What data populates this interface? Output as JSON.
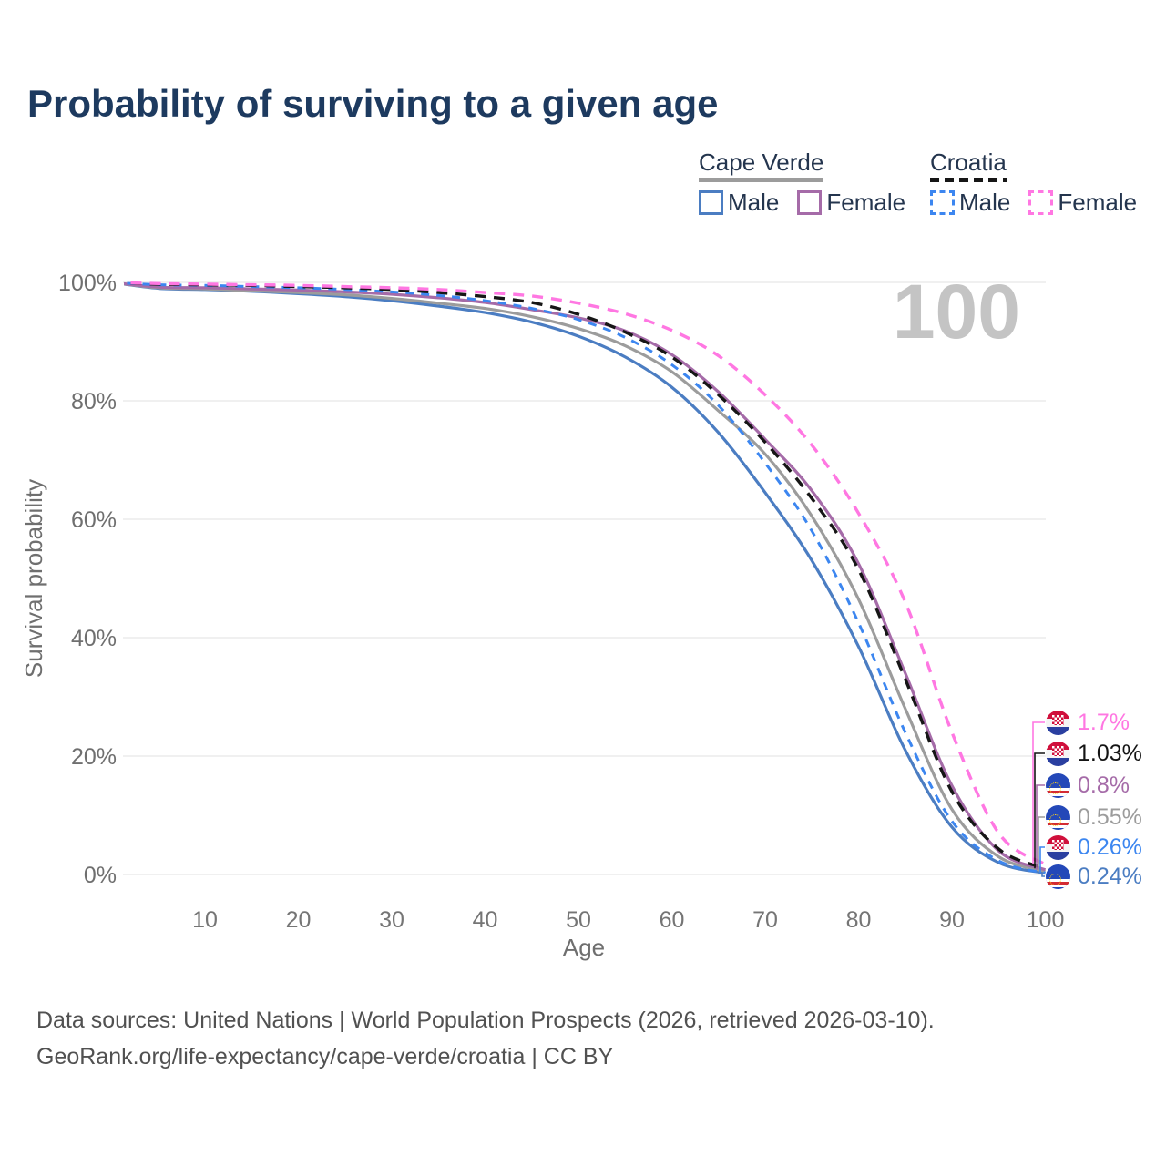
{
  "title": "Probability of surviving to a given age",
  "watermark": "100",
  "legend": {
    "groups": [
      {
        "label": "Cape Verde",
        "line_style": "solid",
        "line_color": "#9c9c9c",
        "items": [
          {
            "label": "Male",
            "color": "#4b7dc2",
            "dashed": false
          },
          {
            "label": "Female",
            "color": "#a56ba8",
            "dashed": false
          }
        ]
      },
      {
        "label": "Croatia",
        "line_style": "dashed",
        "line_color": "#161616",
        "items": [
          {
            "label": "Male",
            "color": "#3c86f0",
            "dashed": true
          },
          {
            "label": "Female",
            "color": "#ff77e2",
            "dashed": true
          }
        ]
      }
    ]
  },
  "footer": {
    "line1": "Data sources: United Nations | World Population Prospects (2026, retrieved 2026-03-10).",
    "line2": "GeoRank.org/life-expectancy/cape-verde/croatia | CC BY"
  },
  "chart_data": {
    "type": "line",
    "title": "Probability of surviving to a given age",
    "xlabel": "Age",
    "ylabel": "Survival probability",
    "xlim": [
      0,
      100
    ],
    "ylim": [
      0,
      100
    ],
    "grid": "horizontal",
    "x_ticks": [
      10,
      20,
      30,
      40,
      50,
      60,
      70,
      80,
      90,
      100
    ],
    "y_ticks": [
      {
        "value": 0,
        "label": "0%"
      },
      {
        "value": 20,
        "label": "20%"
      },
      {
        "value": 40,
        "label": "40%"
      },
      {
        "value": 60,
        "label": "60%"
      },
      {
        "value": 80,
        "label": "80%"
      },
      {
        "value": 100,
        "label": "100%"
      }
    ],
    "x": [
      0,
      5,
      10,
      15,
      20,
      25,
      30,
      35,
      40,
      45,
      50,
      55,
      60,
      65,
      70,
      75,
      80,
      85,
      90,
      95,
      100
    ],
    "series": [
      {
        "id": "cape-verde-male",
        "name": "Cape Verde Male",
        "color": "#4b7dc2",
        "dashed": false,
        "width": 3.2,
        "values": [
          100,
          99.0,
          98.8,
          98.5,
          98.1,
          97.6,
          96.9,
          96.0,
          94.9,
          93.3,
          90.9,
          87.4,
          82.3,
          74.6,
          64.5,
          53,
          38.5,
          21,
          8,
          2,
          0.24
        ]
      },
      {
        "id": "cape-verde-both",
        "name": "Cape Verde Both sexes",
        "color": "#9c9c9c",
        "dashed": false,
        "width": 3.2,
        "values": [
          100,
          99.1,
          98.9,
          98.6,
          98.3,
          97.9,
          97.3,
          96.5,
          95.6,
          94.2,
          92.2,
          89.3,
          84.9,
          78.3,
          71,
          60.5,
          46.5,
          28,
          11,
          3,
          0.55
        ]
      },
      {
        "id": "cape-verde-female",
        "name": "Cape Verde Female",
        "color": "#a56ba8",
        "dashed": false,
        "width": 3.2,
        "values": [
          100,
          99.2,
          99.1,
          98.9,
          98.7,
          98.4,
          98.0,
          97.4,
          96.6,
          95.4,
          94.0,
          91.8,
          87.8,
          81.5,
          73.5,
          64.8,
          52.5,
          34,
          15,
          4,
          0.8
        ]
      },
      {
        "id": "croatia-male",
        "name": "Croatia Male",
        "color": "#3c86f0",
        "dashed": true,
        "width": 3,
        "values": [
          100,
          99.6,
          99.5,
          99.3,
          99.1,
          98.8,
          98.4,
          97.8,
          96.9,
          95.6,
          93.7,
          90.7,
          86.1,
          79.2,
          69.5,
          58,
          42.5,
          24,
          9,
          2.3,
          0.26
        ]
      },
      {
        "id": "croatia-both",
        "name": "Croatia Both sexes",
        "color": "#161616",
        "dashed": true,
        "width": 3.4,
        "values": [
          100,
          99.7,
          99.6,
          99.5,
          99.3,
          99.1,
          98.8,
          98.3,
          97.6,
          96.6,
          94.6,
          91.6,
          87.4,
          81,
          73,
          63.5,
          51.5,
          33,
          14,
          4.3,
          1.03
        ]
      },
      {
        "id": "croatia-female",
        "name": "Croatia Female",
        "color": "#ff77e2",
        "dashed": true,
        "width": 3.4,
        "values": [
          100,
          99.8,
          99.7,
          99.6,
          99.5,
          99.3,
          99.1,
          98.8,
          98.3,
          97.7,
          96.5,
          94.7,
          91.9,
          87.6,
          81,
          72.5,
          61,
          46,
          24,
          7,
          1.7
        ]
      }
    ],
    "end_labels": [
      {
        "value": "1.7%",
        "series_id": "croatia-female",
        "flag": "croatia",
        "color": "#ff77e2"
      },
      {
        "value": "1.03%",
        "series_id": "croatia-both",
        "flag": "croatia",
        "color": "#141414"
      },
      {
        "value": "0.8%",
        "series_id": "cape-verde-female",
        "flag": "cape-verde",
        "color": "#a56ba8"
      },
      {
        "value": "0.55%",
        "series_id": "cape-verde-both",
        "flag": "cape-verde",
        "color": "#9c9c9c"
      },
      {
        "value": "0.26%",
        "series_id": "croatia-male",
        "flag": "croatia",
        "color": "#3c86f0"
      },
      {
        "value": "0.24%",
        "series_id": "cape-verde-male",
        "flag": "cape-verde",
        "color": "#4b7dc2"
      }
    ]
  }
}
